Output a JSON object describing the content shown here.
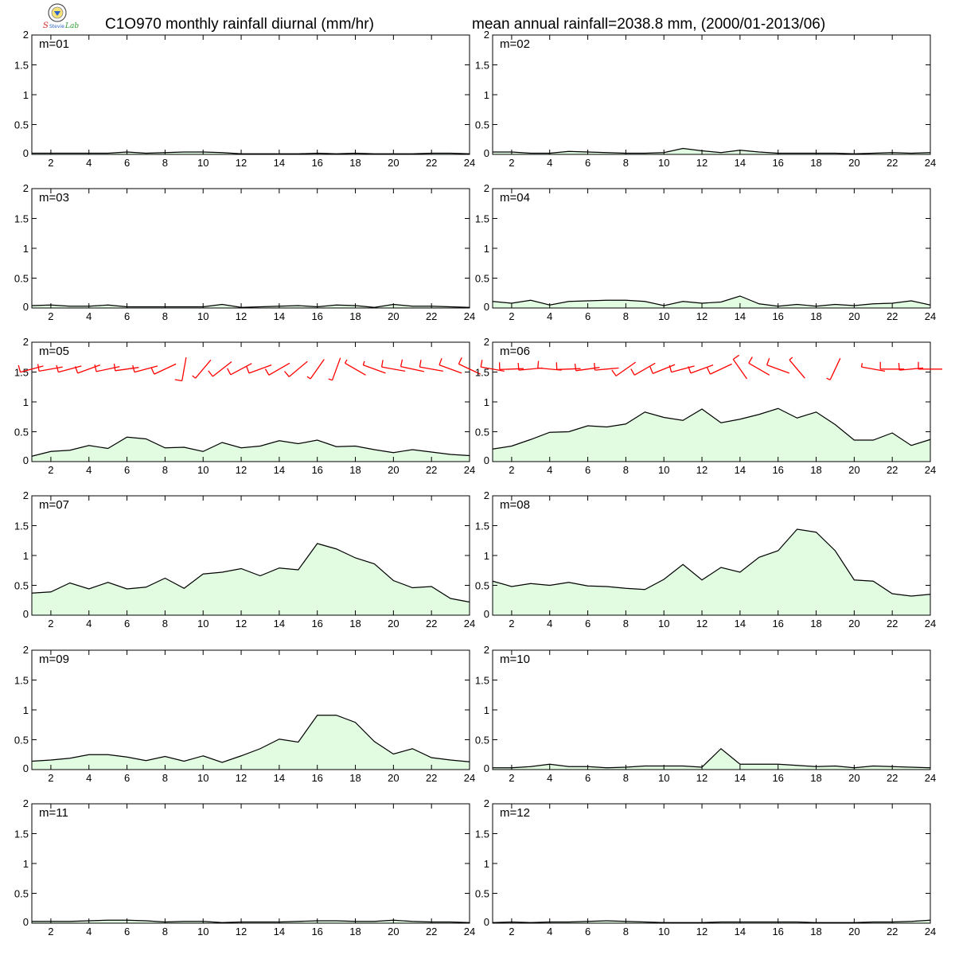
{
  "header": {
    "title_left": "C1O970 monthly rainfall diurnal (mm/hr)",
    "title_right": "mean annual rainfall=2038.8 mm, (2000/01-2013/06)",
    "logo_text": "Lab"
  },
  "colors": {
    "fill": "#e2fce2",
    "line": "#000000",
    "wind": "#ff0000"
  },
  "chart_data": [
    {
      "type": "area",
      "title": "m=01",
      "x": [
        1,
        2,
        3,
        4,
        5,
        6,
        7,
        8,
        9,
        10,
        11,
        12,
        13,
        14,
        15,
        16,
        17,
        18,
        19,
        20,
        21,
        22,
        23,
        24
      ],
      "xticks": [
        2,
        4,
        6,
        8,
        10,
        12,
        14,
        16,
        18,
        20,
        22,
        24
      ],
      "yticks": [
        "0",
        "0.5",
        "1",
        "1.5",
        "2"
      ],
      "ylim": [
        0,
        2
      ],
      "values": [
        0.02,
        0.02,
        0.02,
        0.02,
        0.02,
        0.04,
        0.02,
        0.03,
        0.04,
        0.04,
        0.03,
        0.01,
        0.01,
        0.01,
        0.01,
        0.02,
        0.01,
        0.02,
        0.01,
        0.01,
        0.01,
        0.02,
        0.02,
        0.01
      ]
    },
    {
      "type": "area",
      "title": "m=02",
      "x": [
        1,
        2,
        3,
        4,
        5,
        6,
        7,
        8,
        9,
        10,
        11,
        12,
        13,
        14,
        15,
        16,
        17,
        18,
        19,
        20,
        21,
        22,
        23,
        24
      ],
      "xticks": [
        2,
        4,
        6,
        8,
        10,
        12,
        14,
        16,
        18,
        20,
        22,
        24
      ],
      "yticks": [
        "0",
        "0.5",
        "1",
        "1.5",
        "2"
      ],
      "ylim": [
        0,
        2
      ],
      "values": [
        0.04,
        0.04,
        0.02,
        0.02,
        0.05,
        0.04,
        0.03,
        0.02,
        0.02,
        0.03,
        0.1,
        0.06,
        0.03,
        0.07,
        0.04,
        0.02,
        0.02,
        0.02,
        0.02,
        0.01,
        0.02,
        0.03,
        0.02,
        0.03
      ]
    },
    {
      "type": "area",
      "title": "m=03",
      "x": [
        1,
        2,
        3,
        4,
        5,
        6,
        7,
        8,
        9,
        10,
        11,
        12,
        13,
        14,
        15,
        16,
        17,
        18,
        19,
        20,
        21,
        22,
        23,
        24
      ],
      "xticks": [
        2,
        4,
        6,
        8,
        10,
        12,
        14,
        16,
        18,
        20,
        22,
        24
      ],
      "yticks": [
        "0",
        "0.5",
        "1",
        "1.5",
        "2"
      ],
      "ylim": [
        0,
        2
      ],
      "values": [
        0.04,
        0.05,
        0.03,
        0.03,
        0.05,
        0.02,
        0.02,
        0.02,
        0.02,
        0.02,
        0.06,
        0.01,
        0.02,
        0.03,
        0.04,
        0.02,
        0.05,
        0.04,
        0.01,
        0.06,
        0.03,
        0.03,
        0.02,
        0.01
      ]
    },
    {
      "type": "area",
      "title": "m=04",
      "x": [
        1,
        2,
        3,
        4,
        5,
        6,
        7,
        8,
        9,
        10,
        11,
        12,
        13,
        14,
        15,
        16,
        17,
        18,
        19,
        20,
        21,
        22,
        23,
        24
      ],
      "xticks": [
        2,
        4,
        6,
        8,
        10,
        12,
        14,
        16,
        18,
        20,
        22,
        24
      ],
      "yticks": [
        "0",
        "0.5",
        "1",
        "1.5",
        "2"
      ],
      "ylim": [
        0,
        2
      ],
      "values": [
        0.11,
        0.08,
        0.13,
        0.05,
        0.11,
        0.12,
        0.13,
        0.13,
        0.11,
        0.04,
        0.11,
        0.08,
        0.1,
        0.2,
        0.07,
        0.03,
        0.06,
        0.03,
        0.06,
        0.04,
        0.07,
        0.08,
        0.12,
        0.05
      ]
    },
    {
      "type": "area",
      "title": "m=05",
      "x": [
        1,
        2,
        3,
        4,
        5,
        6,
        7,
        8,
        9,
        10,
        11,
        12,
        13,
        14,
        15,
        16,
        17,
        18,
        19,
        20,
        21,
        22,
        23,
        24
      ],
      "xticks": [
        2,
        4,
        6,
        8,
        10,
        12,
        14,
        16,
        18,
        20,
        22,
        24
      ],
      "yticks": [
        "0",
        "0.5",
        "1",
        "1.5",
        "2"
      ],
      "ylim": [
        0,
        2
      ],
      "values": [
        0.09,
        0.17,
        0.19,
        0.27,
        0.22,
        0.41,
        0.38,
        0.23,
        0.24,
        0.17,
        0.32,
        0.23,
        0.26,
        0.35,
        0.3,
        0.36,
        0.25,
        0.26,
        0.2,
        0.15,
        0.2,
        0.16,
        0.12,
        0.1
      ],
      "wind_barbs": [
        {
          "dir": 255,
          "spd": 12
        },
        {
          "dir": 260,
          "spd": 12
        },
        {
          "dir": 255,
          "spd": 11
        },
        {
          "dir": 250,
          "spd": 12
        },
        {
          "dir": 258,
          "spd": 10
        },
        {
          "dir": 262,
          "spd": 12
        },
        {
          "dir": 255,
          "spd": 11
        },
        {
          "dir": 245,
          "spd": 12
        },
        {
          "dir": 190,
          "spd": 10
        },
        {
          "dir": 220,
          "spd": 9
        },
        {
          "dir": 232,
          "spd": 10
        },
        {
          "dir": 242,
          "spd": 12
        },
        {
          "dir": 250,
          "spd": 11
        },
        {
          "dir": 240,
          "spd": 10
        },
        {
          "dir": 230,
          "spd": 10
        },
        {
          "dir": 215,
          "spd": 8
        },
        {
          "dir": 200,
          "spd": 7
        },
        {
          "dir": 300,
          "spd": 8
        },
        {
          "dir": 290,
          "spd": 8
        },
        {
          "dir": 280,
          "spd": 10
        },
        {
          "dir": 282,
          "spd": 12
        },
        {
          "dir": 280,
          "spd": 12
        },
        {
          "dir": 290,
          "spd": 12
        },
        {
          "dir": 295,
          "spd": 12
        }
      ]
    },
    {
      "type": "area",
      "title": "m=06",
      "x": [
        1,
        2,
        3,
        4,
        5,
        6,
        7,
        8,
        9,
        10,
        11,
        12,
        13,
        14,
        15,
        16,
        17,
        18,
        19,
        20,
        21,
        22,
        23,
        24
      ],
      "xticks": [
        2,
        4,
        6,
        8,
        10,
        12,
        14,
        16,
        18,
        20,
        22,
        24
      ],
      "yticks": [
        "0",
        "0.5",
        "1",
        "1.5",
        "2"
      ],
      "ylim": [
        0,
        2
      ],
      "values": [
        0.21,
        0.26,
        0.37,
        0.49,
        0.5,
        0.6,
        0.58,
        0.63,
        0.83,
        0.74,
        0.69,
        0.88,
        0.65,
        0.71,
        0.79,
        0.89,
        0.73,
        0.83,
        0.62,
        0.36,
        0.36,
        0.48,
        0.27,
        0.37
      ],
      "wind_barbs": [
        {
          "dir": 280,
          "spd": 12
        },
        {
          "dir": 268,
          "spd": 12
        },
        {
          "dir": 265,
          "spd": 12
        },
        {
          "dir": 275,
          "spd": 14
        },
        {
          "dir": 268,
          "spd": 12
        },
        {
          "dir": 262,
          "spd": 12
        },
        {
          "dir": 265,
          "spd": 14
        },
        {
          "dir": 235,
          "spd": 14
        },
        {
          "dir": 240,
          "spd": 12
        },
        {
          "dir": 248,
          "spd": 12
        },
        {
          "dir": 255,
          "spd": 12
        },
        {
          "dir": 250,
          "spd": 12
        },
        {
          "dir": 245,
          "spd": 10
        },
        {
          "dir": 325,
          "spd": 10
        },
        {
          "dir": 300,
          "spd": 12
        },
        {
          "dir": 290,
          "spd": 10
        },
        {
          "dir": 320,
          "spd": 8
        },
        {
          "dir": 0,
          "spd": 0
        },
        {
          "dir": 205,
          "spd": 8
        },
        {
          "dir": 0,
          "spd": 0
        },
        {
          "dir": 280,
          "spd": 8
        },
        {
          "dir": 270,
          "spd": 12
        },
        {
          "dir": 265,
          "spd": 12
        },
        {
          "dir": 270,
          "spd": 12
        }
      ]
    },
    {
      "type": "area",
      "title": "m=07",
      "x": [
        1,
        2,
        3,
        4,
        5,
        6,
        7,
        8,
        9,
        10,
        11,
        12,
        13,
        14,
        15,
        16,
        17,
        18,
        19,
        20,
        21,
        22,
        23,
        24
      ],
      "xticks": [
        2,
        4,
        6,
        8,
        10,
        12,
        14,
        16,
        18,
        20,
        22,
        24
      ],
      "yticks": [
        "0",
        "0.5",
        "1",
        "1.5",
        "2"
      ],
      "ylim": [
        0,
        2
      ],
      "values": [
        0.37,
        0.39,
        0.54,
        0.44,
        0.55,
        0.44,
        0.47,
        0.62,
        0.45,
        0.69,
        0.72,
        0.78,
        0.66,
        0.79,
        0.76,
        1.2,
        1.11,
        0.96,
        0.86,
        0.58,
        0.46,
        0.48,
        0.28,
        0.22
      ]
    },
    {
      "type": "area",
      "title": "m=08",
      "x": [
        1,
        2,
        3,
        4,
        5,
        6,
        7,
        8,
        9,
        10,
        11,
        12,
        13,
        14,
        15,
        16,
        17,
        18,
        19,
        20,
        21,
        22,
        23,
        24
      ],
      "xticks": [
        2,
        4,
        6,
        8,
        10,
        12,
        14,
        16,
        18,
        20,
        22,
        24
      ],
      "yticks": [
        "0",
        "0.5",
        "1",
        "1.5",
        "2"
      ],
      "ylim": [
        0,
        2
      ],
      "values": [
        0.57,
        0.48,
        0.53,
        0.5,
        0.55,
        0.49,
        0.48,
        0.45,
        0.43,
        0.6,
        0.85,
        0.59,
        0.8,
        0.72,
        0.97,
        1.08,
        1.44,
        1.39,
        1.08,
        0.59,
        0.57,
        0.36,
        0.32,
        0.35
      ]
    },
    {
      "type": "area",
      "title": "m=09",
      "x": [
        1,
        2,
        3,
        4,
        5,
        6,
        7,
        8,
        9,
        10,
        11,
        12,
        13,
        14,
        15,
        16,
        17,
        18,
        19,
        20,
        21,
        22,
        23,
        24
      ],
      "xticks": [
        2,
        4,
        6,
        8,
        10,
        12,
        14,
        16,
        18,
        20,
        22,
        24
      ],
      "yticks": [
        "0",
        "0.5",
        "1",
        "1.5",
        "2"
      ],
      "ylim": [
        0,
        2
      ],
      "values": [
        0.14,
        0.16,
        0.19,
        0.25,
        0.25,
        0.21,
        0.15,
        0.22,
        0.14,
        0.23,
        0.12,
        0.23,
        0.35,
        0.51,
        0.46,
        0.91,
        0.91,
        0.79,
        0.47,
        0.26,
        0.35,
        0.2,
        0.16,
        0.13
      ]
    },
    {
      "type": "area",
      "title": "m=10",
      "x": [
        1,
        2,
        3,
        4,
        5,
        6,
        7,
        8,
        9,
        10,
        11,
        12,
        13,
        14,
        15,
        16,
        17,
        18,
        19,
        20,
        21,
        22,
        23,
        24
      ],
      "xticks": [
        2,
        4,
        6,
        8,
        10,
        12,
        14,
        16,
        18,
        20,
        22,
        24
      ],
      "yticks": [
        "0",
        "0.5",
        "1",
        "1.5",
        "2"
      ],
      "ylim": [
        0,
        2
      ],
      "values": [
        0.03,
        0.03,
        0.05,
        0.09,
        0.05,
        0.05,
        0.03,
        0.04,
        0.06,
        0.06,
        0.06,
        0.04,
        0.35,
        0.09,
        0.09,
        0.09,
        0.07,
        0.05,
        0.06,
        0.03,
        0.06,
        0.05,
        0.04,
        0.03
      ]
    },
    {
      "type": "area",
      "title": "m=11",
      "x": [
        1,
        2,
        3,
        4,
        5,
        6,
        7,
        8,
        9,
        10,
        11,
        12,
        13,
        14,
        15,
        16,
        17,
        18,
        19,
        20,
        21,
        22,
        23,
        24
      ],
      "xticks": [
        2,
        4,
        6,
        8,
        10,
        12,
        14,
        16,
        18,
        20,
        22,
        24
      ],
      "yticks": [
        "0",
        "0.5",
        "1",
        "1.5",
        "2"
      ],
      "ylim": [
        0,
        2
      ],
      "values": [
        0.03,
        0.03,
        0.03,
        0.04,
        0.05,
        0.05,
        0.04,
        0.02,
        0.03,
        0.03,
        0.01,
        0.02,
        0.02,
        0.02,
        0.03,
        0.04,
        0.04,
        0.03,
        0.03,
        0.05,
        0.03,
        0.02,
        0.02,
        0.01
      ]
    },
    {
      "type": "area",
      "title": "m=12",
      "x": [
        1,
        2,
        3,
        4,
        5,
        6,
        7,
        8,
        9,
        10,
        11,
        12,
        13,
        14,
        15,
        16,
        17,
        18,
        19,
        20,
        21,
        22,
        23,
        24
      ],
      "xticks": [
        2,
        4,
        6,
        8,
        10,
        12,
        14,
        16,
        18,
        20,
        22,
        24
      ],
      "yticks": [
        "0",
        "0.5",
        "1",
        "1.5",
        "2"
      ],
      "ylim": [
        0,
        2
      ],
      "values": [
        0.01,
        0.02,
        0.01,
        0.02,
        0.02,
        0.03,
        0.04,
        0.03,
        0.02,
        0.01,
        0.01,
        0.01,
        0.02,
        0.02,
        0.02,
        0.02,
        0.02,
        0.01,
        0.01,
        0.01,
        0.02,
        0.02,
        0.03,
        0.05
      ]
    }
  ]
}
